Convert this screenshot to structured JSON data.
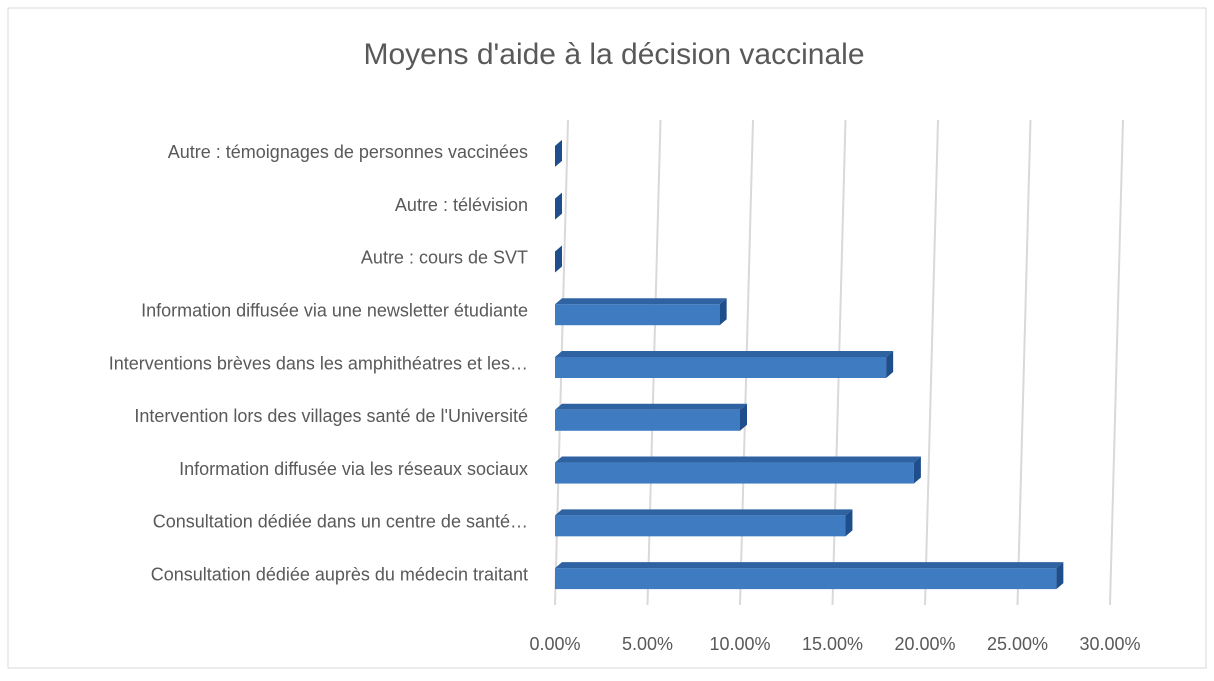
{
  "chart_data": {
    "type": "bar3d_horizontal",
    "title": "Moyens d'aide à la décision vaccinale",
    "categories": [
      "Autre : témoignages de personnes vaccinées",
      "Autre : télévision",
      "Autre : cours de SVT",
      "Information diffusée via une newsletter étudiante",
      "Interventions brèves dans les amphithéatres et les…",
      "Intervention lors des villages santé de l'Université",
      "Information diffusée via les réseaux sociaux",
      "Consultation dédiée dans un centre de santé…",
      "Consultation dédiée auprès du médecin traitant"
    ],
    "values": [
      0,
      0,
      0,
      8.9,
      17.9,
      10.0,
      19.4,
      15.7,
      27.1
    ],
    "color": "#3e7bc1",
    "xlim": [
      0,
      30
    ],
    "xticks": [
      {
        "value": 0,
        "label": "0.00%"
      },
      {
        "value": 5,
        "label": "5.00%"
      },
      {
        "value": 10,
        "label": "10.00%"
      },
      {
        "value": 15,
        "label": "15.00%"
      },
      {
        "value": 20,
        "label": "20.00%"
      },
      {
        "value": 25,
        "label": "25.00%"
      },
      {
        "value": 30,
        "label": "30.00%"
      }
    ],
    "grid": true
  }
}
